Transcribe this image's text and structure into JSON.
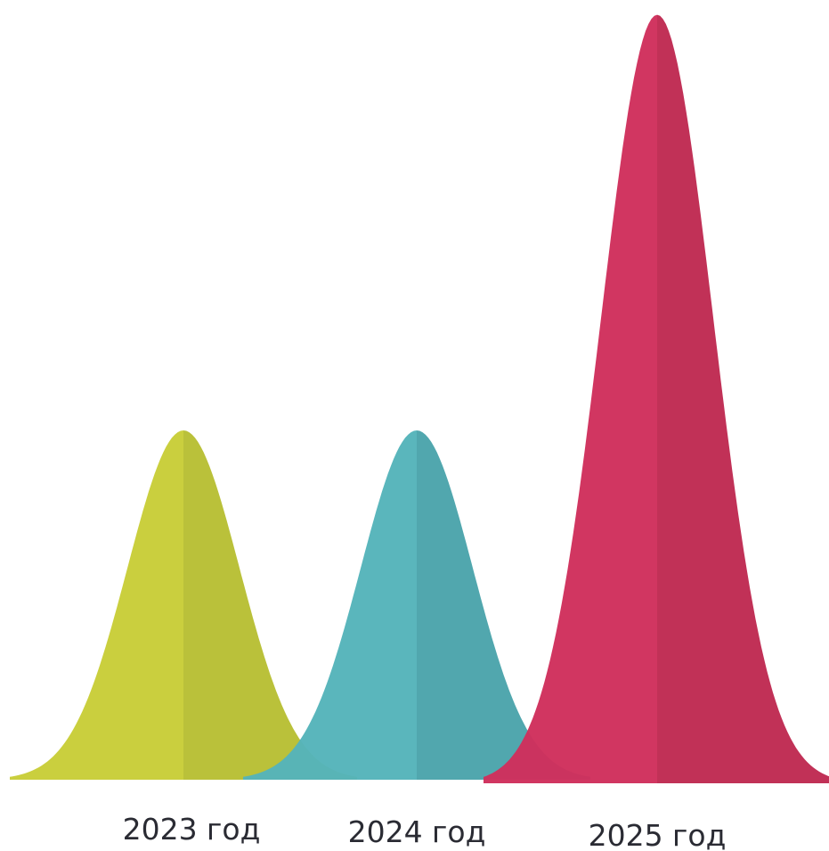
{
  "chart_data": {
    "type": "area",
    "categories": [
      "2023 год",
      "2024 год",
      "2025 год"
    ],
    "values": [
      1.0,
      1.0,
      2.2
    ],
    "ylim": [
      0,
      2.2
    ],
    "grid": false,
    "legend": "none",
    "series": [
      {
        "category": "2023 год",
        "value": 1.0,
        "color_light": "#c8cd38",
        "color_dark": "#b8bf34"
      },
      {
        "category": "2024 год",
        "value": 1.0,
        "color_light": "#55b4ba",
        "color_dark": "#4ba4ab"
      },
      {
        "category": "2025 год",
        "value": 2.2,
        "color_light": "#d0305c",
        "color_dark": "#bf2a52"
      }
    ]
  }
}
